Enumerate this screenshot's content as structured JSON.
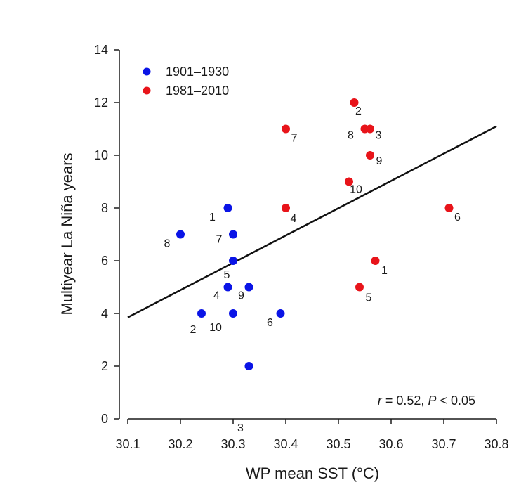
{
  "chart_data": {
    "type": "scatter",
    "xlabel": "WP mean SST (°C)",
    "ylabel": "Multiyear La Niña years",
    "xlim": [
      30.1,
      30.8
    ],
    "ylim": [
      0,
      14
    ],
    "x_ticks": [
      "30.1",
      "30.2",
      "30.3",
      "30.4",
      "30.5",
      "30.6",
      "30.7",
      "30.8"
    ],
    "y_ticks": [
      "0",
      "2",
      "4",
      "6",
      "8",
      "10",
      "12",
      "14"
    ],
    "legend_position": "top-left",
    "grid": false,
    "series": [
      {
        "name": "1901–1930",
        "color": "#0a14e6",
        "points": [
          {
            "label": "1",
            "x": 30.29,
            "y": 8
          },
          {
            "label": "2",
            "x": 30.24,
            "y": 4
          },
          {
            "label": "3",
            "x": 30.33,
            "y": 2
          },
          {
            "label": "4",
            "x": 30.29,
            "y": 5
          },
          {
            "label": "5",
            "x": 30.3,
            "y": 6
          },
          {
            "label": "6",
            "x": 30.39,
            "y": 4
          },
          {
            "label": "7",
            "x": 30.3,
            "y": 7
          },
          {
            "label": "8",
            "x": 30.2,
            "y": 7
          },
          {
            "label": "9",
            "x": 30.33,
            "y": 5
          },
          {
            "label": "10",
            "x": 30.3,
            "y": 4
          }
        ]
      },
      {
        "name": "1981–2010",
        "color": "#e8141a",
        "points": [
          {
            "label": "1",
            "x": 30.57,
            "y": 6
          },
          {
            "label": "2",
            "x": 30.53,
            "y": 12
          },
          {
            "label": "3",
            "x": 30.56,
            "y": 11
          },
          {
            "label": "4",
            "x": 30.4,
            "y": 8
          },
          {
            "label": "5",
            "x": 30.54,
            "y": 5
          },
          {
            "label": "6",
            "x": 30.71,
            "y": 8
          },
          {
            "label": "7",
            "x": 30.4,
            "y": 11
          },
          {
            "label": "8",
            "x": 30.55,
            "y": 11
          },
          {
            "label": "9",
            "x": 30.56,
            "y": 10
          },
          {
            "label": "10",
            "x": 30.52,
            "y": 9
          }
        ]
      }
    ],
    "regression_line": {
      "x": [
        30.1,
        30.8
      ],
      "y": [
        3.85,
        11.1
      ]
    },
    "annotation": {
      "r_symbol": "r",
      "r_text": " = 0.52, ",
      "p_symbol": "P",
      "p_text": " < 0.05"
    }
  }
}
